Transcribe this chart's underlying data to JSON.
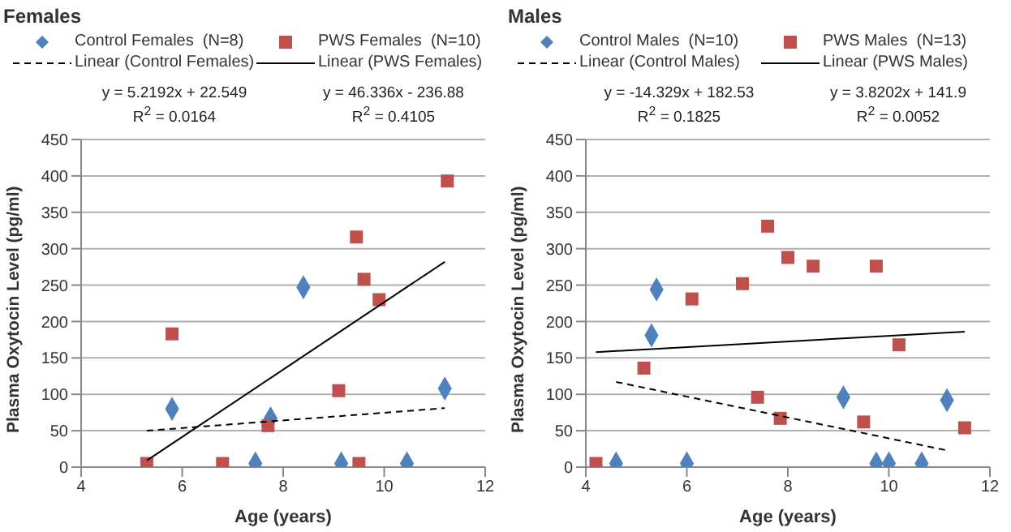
{
  "chart_data": [
    {
      "type": "scatter",
      "title": "Females",
      "xlabel": "Age (years)",
      "ylabel": "Plasma Oxytocin Level (pg/ml)",
      "xlim": [
        4,
        12
      ],
      "xticks": [
        4,
        6,
        8,
        10,
        12
      ],
      "ylim": [
        0,
        450
      ],
      "yticks": [
        0,
        50,
        100,
        150,
        200,
        250,
        300,
        350,
        400,
        450
      ],
      "grid": "y",
      "legend": "top",
      "annotations": [
        "y = 5.2192x + 22.549\nR$^{2}$ = 0.0164",
        "y = 46.336x - 236.88\nR$^{2}$ = 0.4105"
      ],
      "series": [
        {
          "name": "Control Females  (N=8)",
          "marker": "diamond",
          "color": "#4f81bd",
          "x": [
            5.8,
            7.45,
            7.75,
            8.4,
            9.15,
            10.45,
            11.2
          ],
          "values": [
            80,
            5,
            67,
            247,
            5,
            5,
            108
          ]
        },
        {
          "name": "PWS Females  (N=10)",
          "marker": "square",
          "color": "#c0504d",
          "x": [
            5.3,
            5.8,
            6.8,
            7.7,
            9.1,
            9.5,
            9.45,
            9.6,
            9.9,
            11.25
          ],
          "values": [
            5,
            183,
            5,
            57,
            105,
            5,
            316,
            258,
            230,
            393
          ]
        },
        {
          "name": "Linear (Control Females)",
          "type": "line",
          "line_style": "dashed",
          "color": "#000000",
          "x": [
            5.3,
            11.2
          ],
          "values": [
            50,
            81
          ]
        },
        {
          "name": "Linear (PWS Females)",
          "type": "line",
          "line_style": "solid",
          "color": "#000000",
          "x": [
            5.3,
            11.2
          ],
          "values": [
            9,
            282
          ]
        }
      ]
    },
    {
      "type": "scatter",
      "title": "Males",
      "xlabel": "Age (years)",
      "ylabel": "Plasma Oxytocin Level (pg/ml)",
      "xlim": [
        4,
        12
      ],
      "xticks": [
        4,
        6,
        8,
        10,
        12
      ],
      "ylim": [
        0,
        450
      ],
      "yticks": [
        0,
        50,
        100,
        150,
        200,
        250,
        300,
        350,
        400,
        450
      ],
      "grid": "y",
      "legend": "top",
      "annotations": [
        "y = -14.329x + 182.53\nR$^{2}$ = 0.1825",
        "y = 3.8202x + 141.9\nR$^{2}$ = 0.0052"
      ],
      "series": [
        {
          "name": "Control Males  (N=10)",
          "marker": "diamond",
          "color": "#4f81bd",
          "x": [
            4.6,
            5.3,
            5.4,
            6,
            9.1,
            9.75,
            10,
            10.65,
            11.15
          ],
          "values": [
            5,
            181,
            244,
            5,
            96,
            5,
            5,
            5,
            92
          ]
        },
        {
          "name": "PWS Males  (N=13)",
          "marker": "square",
          "color": "#c0504d",
          "x": [
            4.2,
            5.15,
            6.1,
            7.1,
            7.4,
            7.6,
            7.85,
            8,
            8.5,
            9.5,
            9.75,
            10.2,
            11.5
          ],
          "values": [
            5,
            136,
            231,
            252,
            96,
            331,
            67,
            288,
            276,
            62,
            276,
            168,
            54
          ]
        },
        {
          "name": "Linear (Control Males)",
          "type": "line",
          "line_style": "dashed",
          "color": "#000000",
          "x": [
            4.6,
            11.15
          ],
          "values": [
            117,
            23
          ]
        },
        {
          "name": "Linear (PWS Males)",
          "type": "line",
          "line_style": "solid",
          "color": "#000000",
          "x": [
            4.2,
            11.5
          ],
          "values": [
            158,
            186
          ]
        }
      ]
    }
  ]
}
